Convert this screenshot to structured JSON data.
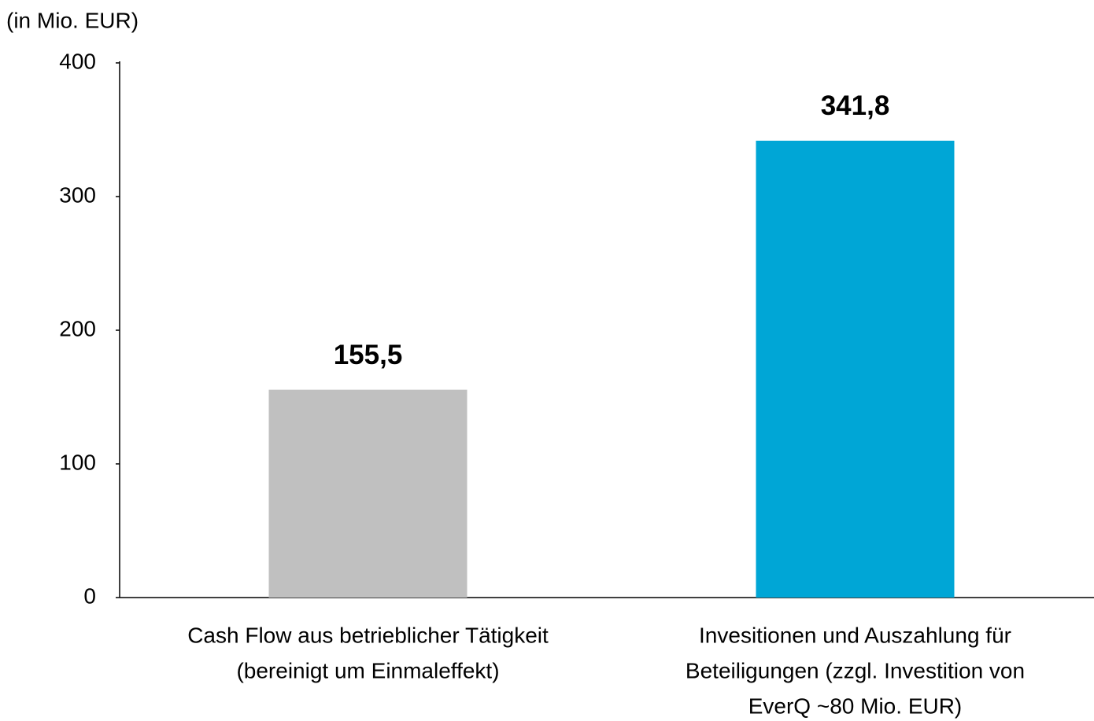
{
  "chart_data": {
    "type": "bar",
    "y_label": "(in Mio. EUR)",
    "categories": [
      [
        "Cash Flow aus betrieblicher Tätigkeit",
        "(bereinigt um Einmaleffekt)"
      ],
      [
        "Invesitionen und Auszahlung für",
        "Beteiligungen (zzgl. Investition von",
        "EverQ ~80 Mio. EUR)"
      ]
    ],
    "values": [
      155.5,
      341.8
    ],
    "value_labels": [
      "155,5",
      "341,8"
    ],
    "colors": [
      "#c0c0c0",
      "#00a6d6"
    ],
    "ylim": [
      0,
      400
    ],
    "yticks": [
      0,
      100,
      200,
      300,
      400
    ],
    "grid": false
  }
}
